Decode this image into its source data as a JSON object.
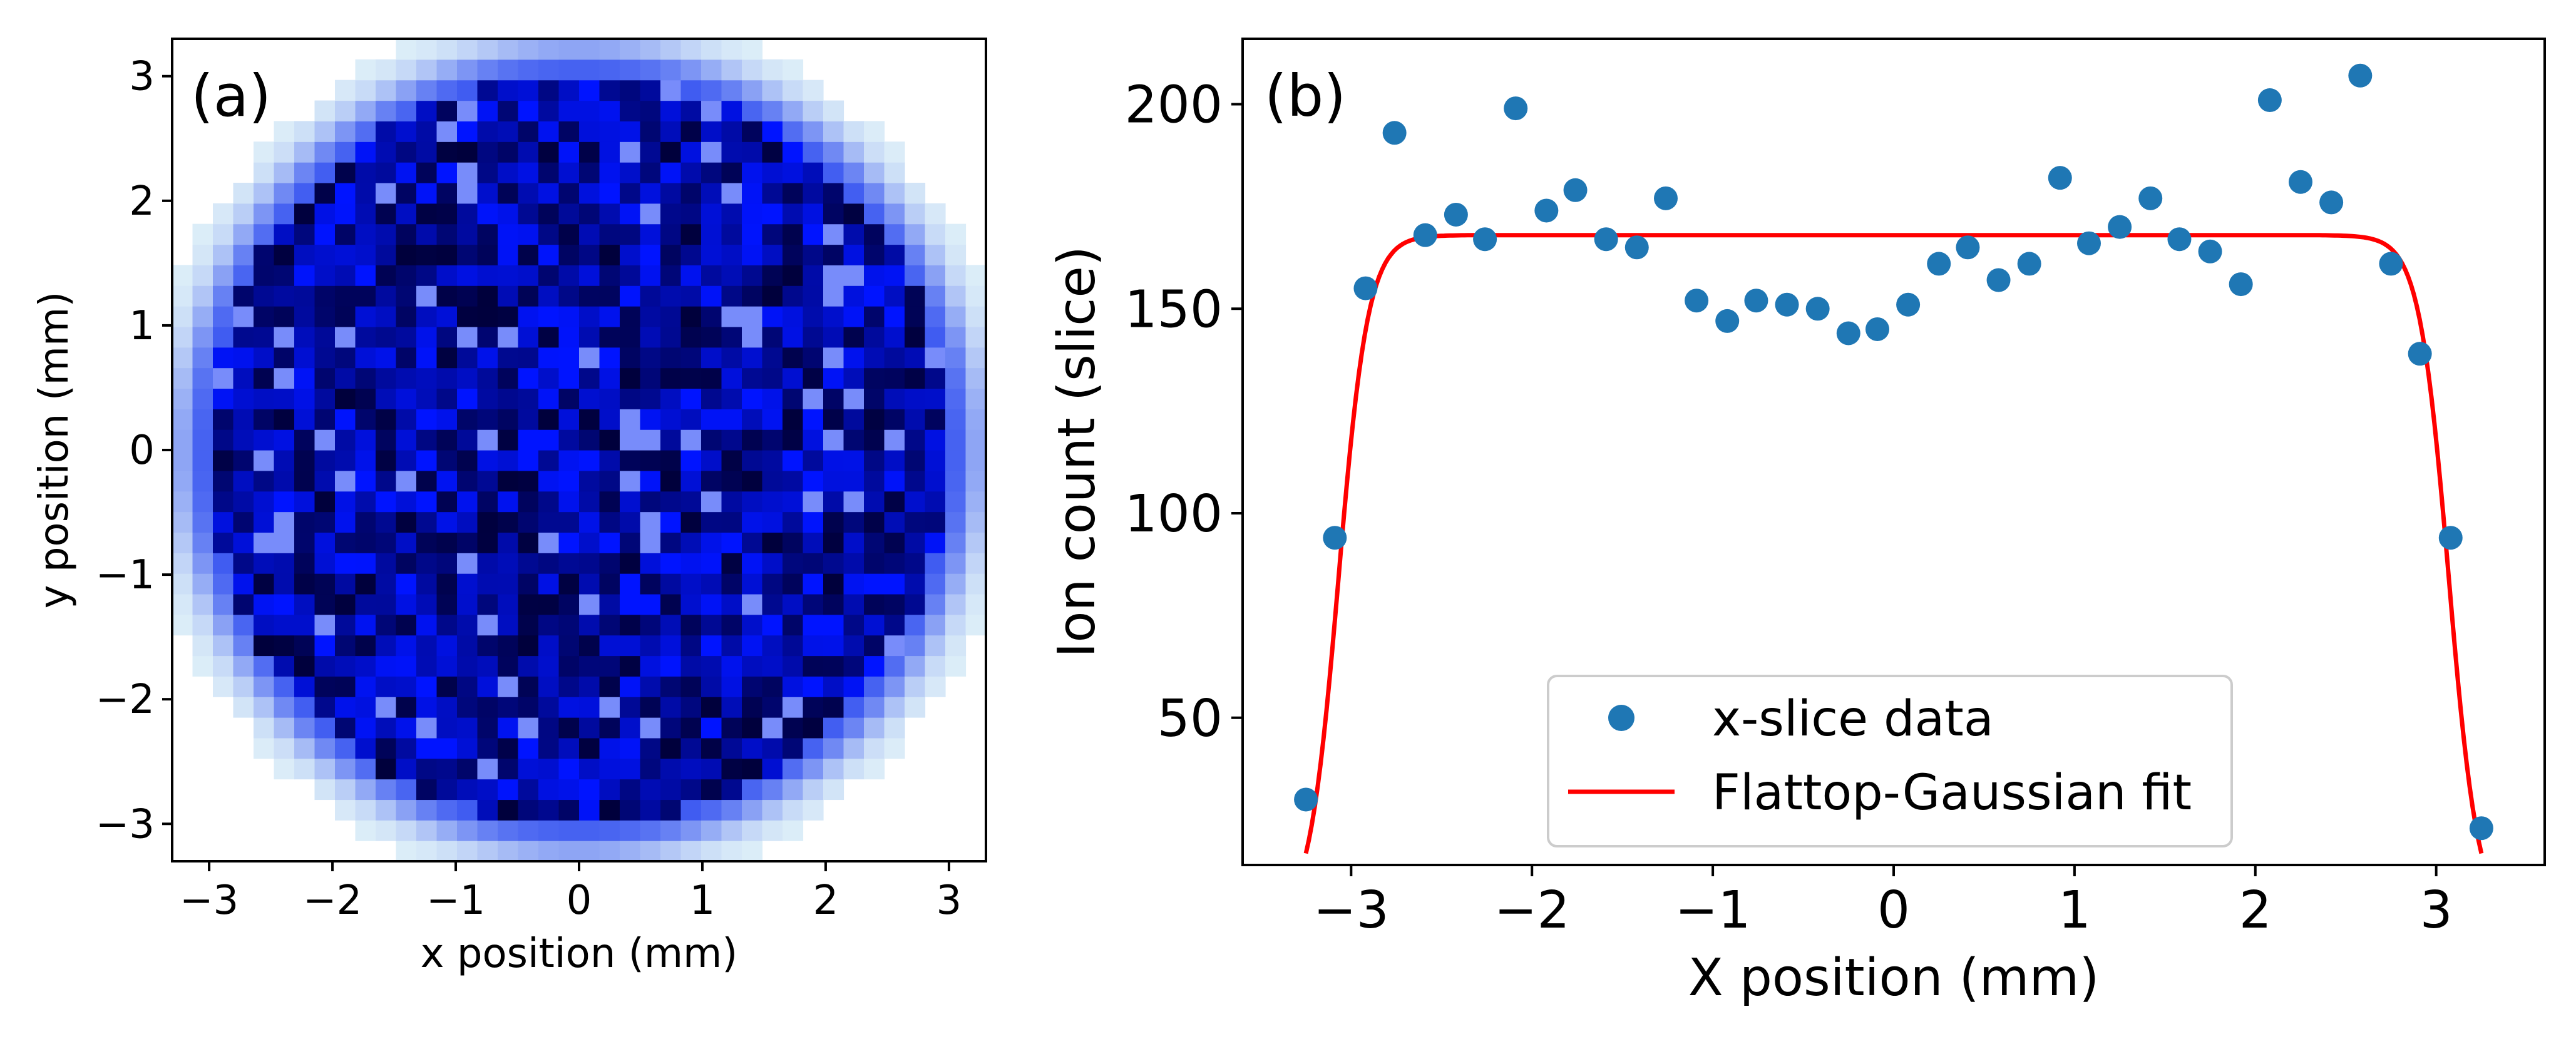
{
  "chart_data": [
    {
      "type": "heatmap",
      "panel_label": "(a)",
      "xlabel": "x position (mm)",
      "ylabel": "y position (mm)",
      "xlim": [
        -3.3,
        3.3
      ],
      "ylim": [
        -3.3,
        3.3
      ],
      "xticks": [
        -3,
        -2,
        -1,
        0,
        1,
        2,
        3
      ],
      "yticks": [
        -3,
        -2,
        -1,
        0,
        1,
        2,
        3
      ],
      "xtick_labels": [
        "−3",
        "−2",
        "−1",
        "0",
        "1",
        "2",
        "3"
      ],
      "ytick_labels": [
        "−3",
        "−2",
        "−1",
        "0",
        "1",
        "2",
        "3"
      ],
      "grid": false,
      "colormap": [
        "#ffffff",
        "#bfe6ef",
        "#0000ff",
        "#000033"
      ],
      "description_of_values": "ion density on a uniform grid, circular flat-top beam of radius ~3.2 mm",
      "grid_size": 40,
      "beam_radius": 3.2
    },
    {
      "type": "scatter",
      "panel_label": "(b)",
      "xlabel": "X position (mm)",
      "ylabel": "Ion count (slice)",
      "xlim": [
        -3.6,
        3.6
      ],
      "ylim": [
        14,
        216
      ],
      "xticks": [
        -3,
        -2,
        -1,
        0,
        1,
        2,
        3
      ],
      "yticks": [
        50,
        100,
        150,
        200
      ],
      "xtick_labels": [
        "−3",
        "−2",
        "−1",
        "0",
        "1",
        "2",
        "3"
      ],
      "ytick_labels": [
        "50",
        "100",
        "150",
        "200"
      ],
      "grid": false,
      "legend_position": "lower-center",
      "series": [
        {
          "name": "x-slice data",
          "kind": "points",
          "color": "#1f77b4",
          "x": [
            -3.25,
            -3.09,
            -2.92,
            -2.76,
            -2.59,
            -2.42,
            -2.26,
            -2.09,
            -1.92,
            -1.76,
            -1.59,
            -1.42,
            -1.26,
            -1.09,
            -0.92,
            -0.76,
            -0.59,
            -0.42,
            -0.25,
            -0.09,
            0.08,
            0.25,
            0.41,
            0.58,
            0.75,
            0.92,
            1.08,
            1.25,
            1.42,
            1.58,
            1.75,
            1.92,
            2.08,
            2.25,
            2.42,
            2.58,
            2.75,
            2.91,
            3.08,
            3.25
          ],
          "y": [
            30,
            94,
            155,
            193,
            168,
            173,
            167,
            199,
            174,
            179,
            167,
            165,
            177,
            152,
            147,
            152,
            151,
            150,
            144,
            145,
            151,
            161,
            165,
            157,
            161,
            182,
            166,
            170,
            177,
            167,
            164,
            156,
            201,
            181,
            176,
            207,
            161,
            139,
            94,
            23
          ]
        },
        {
          "name": "Flattop-Gaussian fit",
          "kind": "line",
          "color": "#ff0000",
          "amplitude": 168,
          "edge_center": 3.07,
          "edge_width": 0.082
        }
      ]
    }
  ]
}
